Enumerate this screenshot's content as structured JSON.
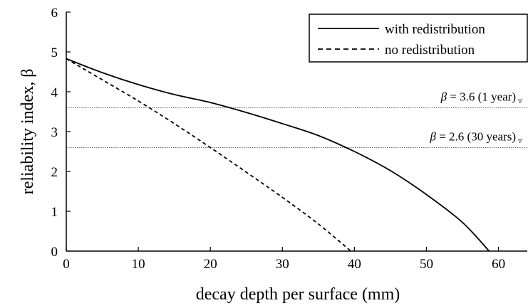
{
  "chart_data": {
    "type": "line",
    "xlabel": "decay depth per surface (mm)",
    "ylabel": "reliability index, β",
    "xlim": [
      0,
      64
    ],
    "ylim": [
      0,
      6
    ],
    "xticks": [
      "0",
      "10",
      "20",
      "30",
      "40",
      "50",
      "60"
    ],
    "yticks": [
      "0",
      "1",
      "2",
      "3",
      "4",
      "5",
      "6"
    ],
    "grid": false,
    "legend": {
      "placement": "top-right"
    },
    "series": [
      {
        "name": "with redistribution",
        "line_style": "solid",
        "color": "#000000",
        "x": [
          0,
          5,
          10,
          15,
          20,
          25,
          30,
          35,
          40,
          45,
          50,
          55,
          58.7
        ],
        "y": [
          4.83,
          4.48,
          4.18,
          3.93,
          3.73,
          3.48,
          3.2,
          2.9,
          2.5,
          2.02,
          1.42,
          0.72,
          0
        ]
      },
      {
        "name": "no redistribution",
        "line_style": "dashed",
        "color": "#000000",
        "x": [
          0,
          5,
          10,
          15,
          20,
          25,
          30,
          35,
          39.5
        ],
        "y": [
          4.83,
          4.3,
          3.77,
          3.2,
          2.6,
          1.98,
          1.35,
          0.68,
          0
        ]
      }
    ],
    "reference_lines": [
      {
        "y": 3.6,
        "label_symbol": "β",
        "label_text": " = 3.6 (1 year) ",
        "marker": "▿",
        "style": "dotted"
      },
      {
        "y": 2.6,
        "label_symbol": "β",
        "label_text": " = 2.6 (30 years) ",
        "marker": "▿",
        "style": "dotted"
      }
    ]
  }
}
